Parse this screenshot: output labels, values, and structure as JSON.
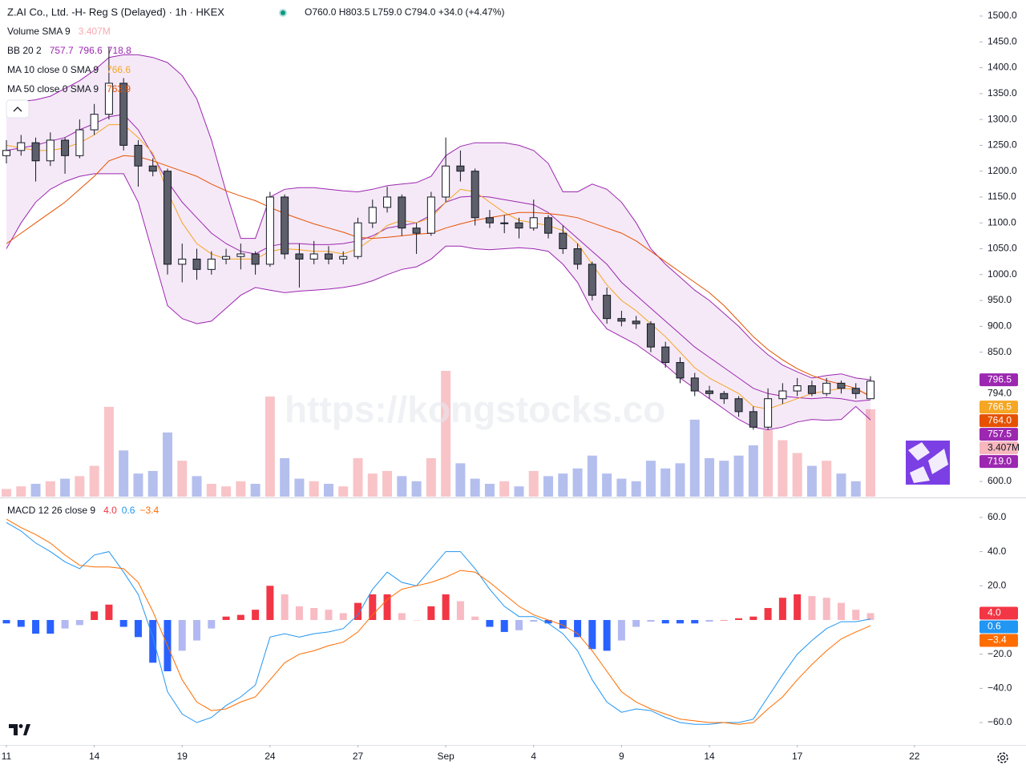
{
  "header": {
    "title": "Z.AI Co., Ltd. -H- Reg S (Delayed) · 1h · HKEX",
    "ohlc": "O760.0 H803.5 L759.0 C794.0 +34.0 (+4.47%)"
  },
  "watermark": "https://kongstocks.co",
  "chart_data": [
    {
      "type": "candlestick",
      "up_color": "#ffffff",
      "down_color": "#5d606b",
      "border_color": "#131722",
      "open": [
        1230,
        1240,
        1255,
        1220,
        1260,
        1230,
        1280,
        1310,
        1370,
        1250,
        1210,
        1200,
        1020,
        1030,
        1010,
        1030,
        1035,
        1040,
        1020,
        1150,
        1040,
        1030,
        1040,
        1030,
        1035,
        1100,
        1130,
        1150,
        1090,
        1080,
        1150,
        1210,
        1200,
        1110,
        1100,
        1100,
        1090,
        1110,
        1080,
        1050,
        1020,
        960,
        915,
        910,
        905,
        860,
        830,
        800,
        775,
        770,
        760,
        735,
        705,
        760,
        775,
        785,
        770,
        790,
        780,
        760
      ],
      "high": [
        1260,
        1270,
        1265,
        1275,
        1265,
        1300,
        1330,
        1440,
        1380,
        1260,
        1225,
        1205,
        1060,
        1050,
        1045,
        1050,
        1060,
        1045,
        1160,
        1155,
        1060,
        1065,
        1055,
        1045,
        1110,
        1145,
        1170,
        1155,
        1100,
        1160,
        1265,
        1240,
        1205,
        1125,
        1115,
        1110,
        1145,
        1115,
        1095,
        1060,
        1025,
        975,
        930,
        920,
        910,
        870,
        840,
        810,
        785,
        775,
        765,
        745,
        780,
        790,
        800,
        795,
        800,
        795,
        790,
        803.5
      ],
      "low": [
        1215,
        1230,
        1180,
        1210,
        1195,
        1225,
        1270,
        1300,
        1240,
        1170,
        1190,
        1000,
        985,
        990,
        1000,
        1020,
        1010,
        1000,
        1015,
        1030,
        975,
        1020,
        1020,
        1020,
        1030,
        1090,
        1120,
        1075,
        1040,
        1075,
        1140,
        1180,
        1095,
        1090,
        1080,
        1070,
        1085,
        1070,
        1040,
        1010,
        950,
        905,
        900,
        895,
        850,
        820,
        790,
        765,
        760,
        750,
        725,
        700,
        700,
        750,
        765,
        765,
        765,
        770,
        760,
        759
      ],
      "close": [
        1240,
        1255,
        1220,
        1260,
        1230,
        1280,
        1310,
        1370,
        1250,
        1210,
        1200,
        1020,
        1030,
        1010,
        1030,
        1035,
        1040,
        1020,
        1150,
        1040,
        1030,
        1040,
        1030,
        1035,
        1100,
        1130,
        1150,
        1090,
        1080,
        1150,
        1210,
        1200,
        1110,
        1100,
        1100,
        1090,
        1110,
        1080,
        1050,
        1020,
        960,
        915,
        910,
        905,
        860,
        830,
        800,
        775,
        770,
        760,
        735,
        705,
        760,
        775,
        785,
        770,
        790,
        780,
        770,
        794
      ],
      "volume": {
        "label": "Volume SMA 9",
        "last_label": "3.407M",
        "up_color": "#f8c4c8",
        "down_color": "#b4bfee",
        "values": [
          0.3,
          0.4,
          0.5,
          0.6,
          0.7,
          0.8,
          1.2,
          3.5,
          1.8,
          0.9,
          1.0,
          2.5,
          1.4,
          0.8,
          0.5,
          0.4,
          0.6,
          0.5,
          3.9,
          1.5,
          0.7,
          0.6,
          0.5,
          0.4,
          1.5,
          0.9,
          1.0,
          0.8,
          0.6,
          1.5,
          4.9,
          1.3,
          0.7,
          0.5,
          0.6,
          0.4,
          1.0,
          0.8,
          0.9,
          1.1,
          1.6,
          0.9,
          0.7,
          0.6,
          1.4,
          1.1,
          1.3,
          3.0,
          1.5,
          1.4,
          1.6,
          2.0,
          2.6,
          2.2,
          1.7,
          1.2,
          1.4,
          0.9,
          0.6,
          3.407
        ]
      },
      "indicators": [
        {
          "label": "BB 20 2",
          "fill": "#9c27b0",
          "lines": [
            {
              "color": "#9c27b0",
              "last_label": "757.7",
              "values": [
                1240,
                1245,
                1250,
                1258,
                1265,
                1280,
                1292,
                1305,
                1310,
                1280,
                1230,
                1180,
                1140,
                1110,
                1080,
                1060,
                1045,
                1040,
                1055,
                1060,
                1060,
                1058,
                1058,
                1060,
                1065,
                1075,
                1090,
                1095,
                1100,
                1115,
                1140,
                1150,
                1152,
                1150,
                1145,
                1140,
                1135,
                1120,
                1095,
                1070,
                1045,
                1020,
                985,
                960,
                935,
                910,
                885,
                860,
                840,
                820,
                800,
                780,
                770,
                765,
                762,
                760,
                762,
                760,
                755,
                757.7
              ]
            },
            {
              "color": "#9c27b0",
              "last_label": "796.6",
              "values": [
                1330,
                1335,
                1338,
                1345,
                1360,
                1375,
                1395,
                1420,
                1425,
                1425,
                1420,
                1410,
                1385,
                1340,
                1260,
                1160,
                1070,
                1070,
                1150,
                1165,
                1168,
                1168,
                1165,
                1162,
                1160,
                1165,
                1172,
                1175,
                1178,
                1190,
                1230,
                1248,
                1255,
                1255,
                1255,
                1250,
                1240,
                1215,
                1160,
                1160,
                1175,
                1165,
                1140,
                1100,
                1050,
                1020,
                995,
                970,
                950,
                925,
                900,
                870,
                845,
                825,
                812,
                800,
                805,
                808,
                800,
                796.6
              ]
            },
            {
              "color": "#9c27b0",
              "last_label": "718.8",
              "values": [
                1050,
                1100,
                1140,
                1165,
                1180,
                1190,
                1195,
                1195,
                1195,
                1140,
                1040,
                940,
                915,
                905,
                910,
                935,
                960,
                975,
                970,
                965,
                968,
                970,
                972,
                975,
                980,
                988,
                1000,
                1010,
                1015,
                1030,
                1055,
                1055,
                1050,
                1048,
                1050,
                1052,
                1050,
                1045,
                1020,
                985,
                930,
                895,
                880,
                865,
                845,
                825,
                800,
                780,
                760,
                740,
                720,
                705,
                700,
                705,
                715,
                720,
                718,
                720,
                745,
                718.8
              ]
            }
          ]
        },
        {
          "label": "MA 10 close 0 SMA 9",
          "lines": [
            {
              "color": "#f5a623",
              "last_label": "766.6",
              "values": [
                1250,
                1245,
                1240,
                1240,
                1245,
                1255,
                1270,
                1290,
                1290,
                1265,
                1235,
                1160,
                1100,
                1060,
                1040,
                1030,
                1030,
                1030,
                1045,
                1050,
                1048,
                1045,
                1045,
                1040,
                1050,
                1070,
                1095,
                1105,
                1100,
                1110,
                1140,
                1165,
                1160,
                1140,
                1120,
                1105,
                1100,
                1095,
                1085,
                1060,
                1020,
                980,
                950,
                930,
                905,
                880,
                850,
                820,
                800,
                785,
                770,
                745,
                740,
                750,
                760,
                770,
                775,
                780,
                778,
                766.6
              ]
            }
          ]
        },
        {
          "label": "MA 50 close 0 SMA 9",
          "lines": [
            {
              "color": "#e65100",
              "last_label": "763.9",
              "values": [
                1060,
                1080,
                1100,
                1120,
                1140,
                1165,
                1190,
                1220,
                1230,
                1228,
                1220,
                1210,
                1200,
                1190,
                1175,
                1162,
                1152,
                1143,
                1130,
                1118,
                1108,
                1098,
                1090,
                1082,
                1072,
                1070,
                1072,
                1075,
                1078,
                1080,
                1090,
                1098,
                1105,
                1110,
                1115,
                1120,
                1120,
                1118,
                1115,
                1110,
                1100,
                1090,
                1080,
                1065,
                1045,
                1025,
                1005,
                985,
                965,
                940,
                910,
                880,
                855,
                835,
                818,
                805,
                795,
                788,
                780,
                763.9
              ]
            }
          ]
        }
      ],
      "badges": [
        {
          "value": 796.5,
          "label": "796.5",
          "color": "#9c27b0"
        },
        {
          "value": 794,
          "label": "794.0"
        },
        {
          "value": 766.5,
          "label": "766.5",
          "color": "#f5a623"
        },
        {
          "value": 764,
          "label": "764.0",
          "color": "#e65100"
        },
        {
          "value": 757.5,
          "label": "757.5",
          "color": "#9c27b0"
        },
        {
          "value": 719,
          "label": "719.0",
          "color": "#9c27b0"
        }
      ],
      "ylim": [
        570.6,
        1531
      ],
      "yticks": [
        {
          "value": 1500,
          "label": "1500.0"
        },
        {
          "value": 1450,
          "label": "1450.0"
        },
        {
          "value": 1400,
          "label": "1400.0"
        },
        {
          "value": 1350,
          "label": "1350.0"
        },
        {
          "value": 1300,
          "label": "1300.0"
        },
        {
          "value": 1250,
          "label": "1250.0"
        },
        {
          "value": 1200,
          "label": "1200.0"
        },
        {
          "value": 1150,
          "label": "1150.0"
        },
        {
          "value": 1100,
          "label": "1100.0"
        },
        {
          "value": 1050,
          "label": "1050.0"
        },
        {
          "value": 1000,
          "label": "1000.0"
        },
        {
          "value": 950,
          "label": "950.0"
        },
        {
          "value": 900,
          "label": "900.0"
        },
        {
          "value": 850,
          "label": "850.0"
        },
        {
          "value": 600,
          "label": "600.0"
        }
      ],
      "xticks": [
        {
          "value": 0,
          "label": "11"
        },
        {
          "value": 6,
          "label": "14"
        },
        {
          "value": 12,
          "label": "19"
        },
        {
          "value": 18,
          "label": "24"
        },
        {
          "value": 24,
          "label": "27"
        },
        {
          "value": 30,
          "label": "Sep"
        },
        {
          "value": 36,
          "label": "4"
        },
        {
          "value": 42,
          "label": "9"
        },
        {
          "value": 48,
          "label": "14"
        },
        {
          "value": 54,
          "label": "17"
        },
        {
          "value": 62,
          "label": "22"
        }
      ]
    },
    {
      "type": "macd",
      "label": "MACD 12 26 close 9",
      "hist": {
        "last_label": "4.0",
        "colors": {
          "pos_up": "#f23645",
          "pos_down": "#f8bbc3",
          "neg_down": "#2962ff",
          "neg_up": "#b2b9f2"
        },
        "values": [
          -2,
          -4,
          -8,
          -8,
          -5,
          -3,
          5,
          9,
          -4,
          -10,
          -25,
          -30,
          -18,
          -12,
          -5,
          2,
          3,
          6,
          20,
          15,
          8,
          7,
          6,
          4,
          10,
          15,
          15,
          4,
          0,
          8,
          15,
          11,
          2,
          -4,
          -7,
          -6,
          -1,
          -2,
          -5,
          -10,
          -17,
          -18,
          -12,
          -4,
          -1,
          -2,
          -2,
          -2,
          -1,
          0,
          1,
          2,
          7,
          13,
          15,
          14,
          13,
          10,
          6,
          4.0
        ]
      },
      "lines": [
        {
          "color": "#2196f3",
          "last_label": "0.6",
          "values": [
            57,
            52,
            45,
            40,
            34,
            30,
            38,
            40,
            28,
            15,
            -10,
            -42,
            -55,
            -60,
            -57,
            -50,
            -45,
            -38,
            -10,
            -8,
            -10,
            -8,
            -7,
            -5,
            3,
            18,
            28,
            22,
            20,
            30,
            40,
            40,
            30,
            18,
            8,
            2,
            2,
            -2,
            -8,
            -18,
            -35,
            -48,
            -54,
            -52,
            -53,
            -57,
            -60,
            -61,
            -61,
            -60,
            -60,
            -58,
            -45,
            -32,
            -20,
            -12,
            -5,
            -1,
            -1,
            0.6
          ]
        },
        {
          "color": "#ff6d00",
          "last_label": "−3.4",
          "values": [
            59,
            54,
            50,
            45,
            38,
            32,
            31,
            31,
            30,
            22,
            5,
            -15,
            -35,
            -48,
            -53,
            -52,
            -48,
            -45,
            -35,
            -25,
            -20,
            -18,
            -15,
            -13,
            -7,
            3,
            12,
            18,
            20,
            22,
            25,
            29,
            28,
            22,
            15,
            8,
            3,
            0,
            -3,
            -8,
            -18,
            -30,
            -42,
            -48,
            -52,
            -55,
            -58,
            -59,
            -60,
            -60,
            -61,
            -60,
            -52,
            -45,
            -35,
            -26,
            -18,
            -11,
            -7,
            -3.4
          ]
        }
      ],
      "ylim": [
        -73.1,
        69.8
      ],
      "yticks": [
        {
          "value": 60,
          "label": "60.0"
        },
        {
          "value": 40,
          "label": "40.0"
        },
        {
          "value": 20,
          "label": "20.0"
        },
        {
          "value": -20,
          "label": "−20.0"
        },
        {
          "value": -40,
          "label": "−40.0"
        },
        {
          "value": -60,
          "label": "−60.0"
        }
      ]
    }
  ]
}
